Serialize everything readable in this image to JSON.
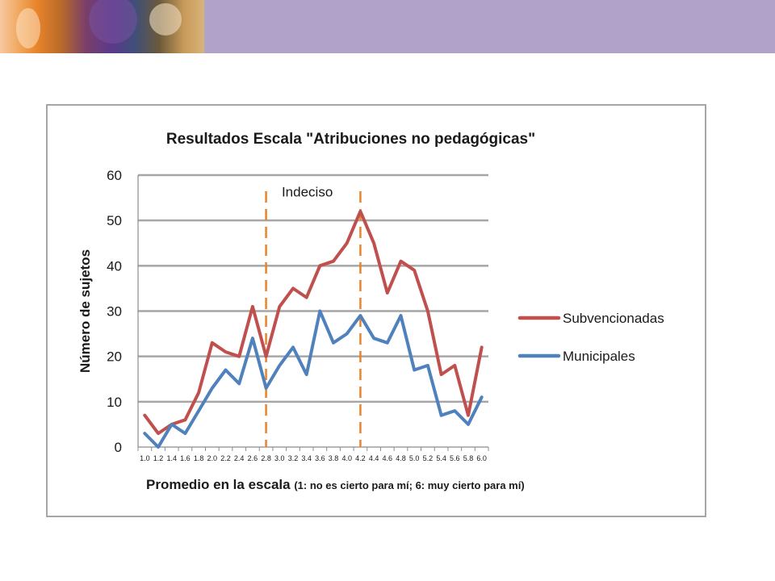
{
  "chart_data": {
    "type": "line",
    "title": "Resultados Escala \"Atribuciones no pedagógicas\"",
    "xlabel": "Promedio en la escala",
    "xlabel_note": "(1: no es  cierto para mí; 6: muy cierto para mí)",
    "ylabel": "Número de sujetos",
    "ylim": [
      0,
      60
    ],
    "yticks": [
      "0",
      "10",
      "20",
      "30",
      "40",
      "50",
      "60"
    ],
    "grid": true,
    "legend_position": "right",
    "categories": [
      "1.0",
      "1.2",
      "1.4",
      "1.6",
      "1.8",
      "2.0",
      "2.2",
      "2.4",
      "2.6",
      "2.8",
      "3.0",
      "3.2",
      "3.4",
      "3.6",
      "3.8",
      "4.0",
      "4.2",
      "4.4",
      "4.6",
      "4.8",
      "5.0",
      "5.2",
      "5.4",
      "5.6",
      "5.8",
      "6.0"
    ],
    "series": [
      {
        "name": "Subvencionadas",
        "color": "#c0504d",
        "values": [
          7,
          3,
          5,
          6,
          12,
          23,
          21,
          20,
          31,
          20,
          31,
          35,
          33,
          40,
          41,
          45,
          52,
          45,
          34,
          41,
          39,
          30,
          16,
          18,
          7,
          22
        ]
      },
      {
        "name": "Municipales",
        "color": "#4f81bd",
        "values": [
          3,
          0,
          5,
          3,
          8,
          13,
          17,
          14,
          24,
          13,
          18,
          22,
          16,
          30,
          23,
          25,
          29,
          24,
          23,
          29,
          17,
          18,
          7,
          8,
          5,
          11
        ]
      }
    ],
    "annotations": [
      {
        "type": "vline",
        "x": "2.8",
        "color": "#e9842a"
      },
      {
        "type": "vline",
        "x": "4.2",
        "color": "#e9842a"
      },
      {
        "type": "text",
        "text": "Indeciso",
        "x": "3.2",
        "y": 56
      }
    ]
  }
}
